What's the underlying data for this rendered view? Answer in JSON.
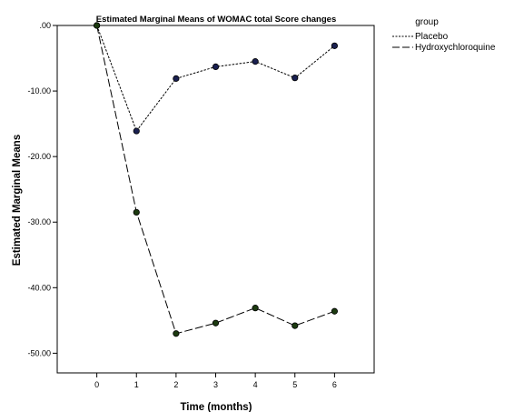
{
  "chart_data": {
    "type": "line",
    "title": "Estimated Marginal Means of  WOMAC total Score changes",
    "xlabel": "Time (months)",
    "ylabel": "Estimated Marginal Means",
    "x": [
      0,
      1,
      2,
      3,
      4,
      5,
      6
    ],
    "x_tick_labels": [
      "0",
      "1",
      "2",
      "3",
      "4",
      "5",
      "6"
    ],
    "xlim": [
      -1,
      7
    ],
    "ylim": [
      -53,
      0
    ],
    "y_ticks": [
      0,
      -10,
      -20,
      -30,
      -40,
      -50
    ],
    "y_tick_labels": [
      ".00",
      "-10.00",
      "-20.00",
      "-30.00",
      "-40.00",
      "-50.00"
    ],
    "grid": false,
    "legend": {
      "title": "group",
      "placement": "right"
    },
    "series": [
      {
        "name": "Placebo",
        "values": [
          0,
          -16.1,
          -8.1,
          -6.3,
          -5.5,
          -8.0,
          -3.1
        ],
        "line_style": "dotted",
        "marker_color": "#1a2050"
      },
      {
        "name": "Hydroxychloroquine",
        "values": [
          0,
          -28.5,
          -47.0,
          -45.4,
          -43.1,
          -45.8,
          -43.6
        ],
        "line_style": "dashed",
        "marker_color": "#1c3a10"
      }
    ],
    "colors": {
      "line": "#000000",
      "axis": "#000000",
      "background": "#ffffff"
    }
  }
}
